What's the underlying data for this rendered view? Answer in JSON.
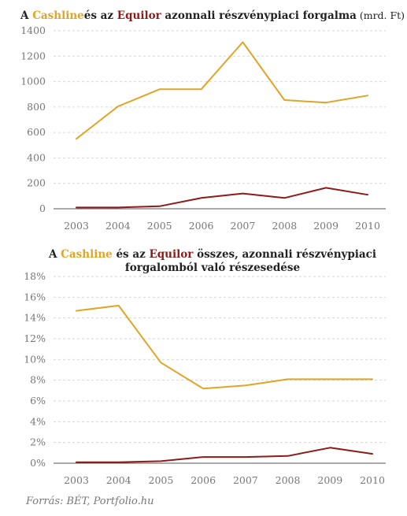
{
  "colors": {
    "cashline": "#E0A526",
    "equilor": "#8E1A1A",
    "text": "#222222",
    "muted": "#777777"
  },
  "charts": [
    {
      "title_segments": [
        {
          "text": "A ",
          "role": "plain"
        },
        {
          "text": "Cashline",
          "role": "cashline"
        },
        {
          "text": "és az ",
          "role": "plain"
        },
        {
          "text": "Equilor",
          "role": "equilor"
        },
        {
          "text": " azonnali részvénypiaci forgalma",
          "role": "plain"
        },
        {
          "text": " (mrd. Ft)",
          "role": "unit"
        }
      ]
    },
    {
      "title_lines": [
        [
          {
            "text": "A ",
            "role": "plain"
          },
          {
            "text": "Cashline",
            "role": "cashline"
          },
          {
            "text": " és az ",
            "role": "plain"
          },
          {
            "text": "Equilor",
            "role": "equilor"
          },
          {
            "text": " összes, azonnali részvénypiaci",
            "role": "plain"
          }
        ],
        [
          {
            "text": "forgalomból való részesedése",
            "role": "plain"
          }
        ]
      ]
    }
  ],
  "chart_data": [
    {
      "type": "line",
      "title": "A Cashlineés az Equilor azonnali részvénypiaci forgalma (mrd. Ft)",
      "x": [
        "2003",
        "2004",
        "2005",
        "2006",
        "2007",
        "2008",
        "2009",
        "2010"
      ],
      "yticks": [
        "0",
        "200",
        "400",
        "600",
        "800",
        "1000",
        "1200",
        "1400"
      ],
      "ylim": [
        0,
        1400
      ],
      "grid": true,
      "series": [
        {
          "name": "Cashline",
          "color": "#E0A526",
          "values": [
            550,
            805,
            940,
            940,
            1310,
            855,
            835,
            890
          ]
        },
        {
          "name": "Equilor",
          "color": "#8E1A1A",
          "values": [
            10,
            10,
            20,
            85,
            120,
            85,
            165,
            110
          ]
        }
      ]
    },
    {
      "type": "line",
      "title": "A Cashline és az Equilor összes, azonnali részvénypiaci forgalomból való részesedése",
      "x": [
        "2003",
        "2004",
        "2005",
        "2006",
        "2007",
        "2008",
        "2009",
        "2010"
      ],
      "yticks": [
        "0%",
        "2%",
        "4%",
        "6%",
        "8%",
        "10%",
        "12%",
        "14%",
        "16%",
        "18%"
      ],
      "ylim": [
        0,
        18
      ],
      "grid": true,
      "series": [
        {
          "name": "Cashline",
          "color": "#E0A526",
          "values": [
            14.7,
            15.2,
            9.7,
            7.2,
            7.5,
            8.1,
            8.1,
            8.1
          ]
        },
        {
          "name": "Equilor",
          "color": "#8E1A1A",
          "values": [
            0.1,
            0.1,
            0.2,
            0.6,
            0.6,
            0.7,
            1.5,
            0.9
          ]
        }
      ]
    }
  ],
  "source": "Forrás: BÉT, Portfolio.hu"
}
